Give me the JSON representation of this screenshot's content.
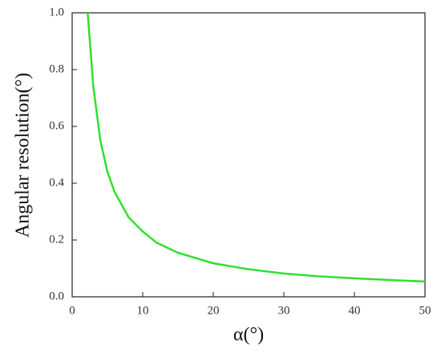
{
  "chart_data": {
    "type": "line",
    "xlabel": "α(°)",
    "ylabel": "Angular resolution(°)",
    "series": [
      {
        "color": "#2ee02e",
        "x": [
          2.2,
          3,
          4,
          5,
          6,
          8,
          10,
          12,
          15,
          20,
          25,
          30,
          35,
          40,
          45,
          50
        ],
        "values": [
          1.0,
          0.74,
          0.55,
          0.44,
          0.37,
          0.28,
          0.23,
          0.19,
          0.155,
          0.118,
          0.097,
          0.082,
          0.072,
          0.065,
          0.059,
          0.054
        ]
      }
    ],
    "xlim": [
      0,
      50
    ],
    "xticks": [
      0,
      10,
      20,
      30,
      40,
      50
    ],
    "ylim": [
      0,
      1
    ],
    "yticks": [
      {
        "value": 0,
        "label": "0.0"
      },
      0.2,
      0.4,
      0.6,
      0.8,
      {
        "value": 1,
        "label": "1.0"
      }
    ],
    "grid": false
  }
}
